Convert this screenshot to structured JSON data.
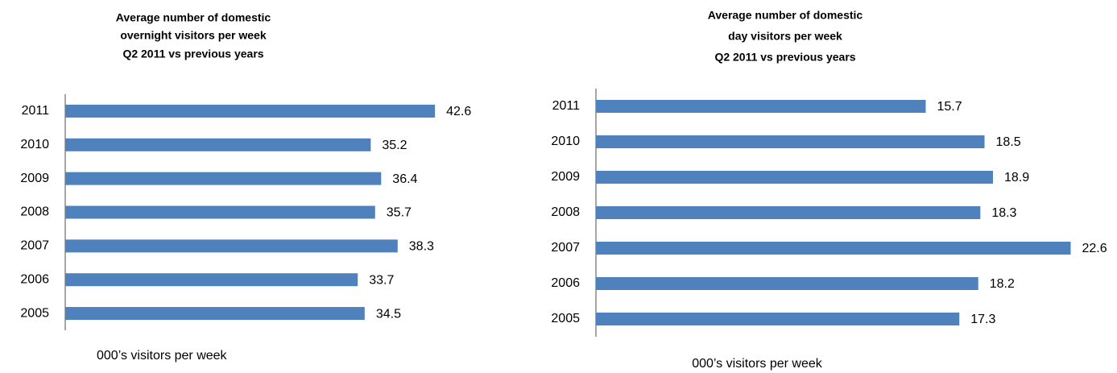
{
  "chart_data": [
    {
      "type": "hbar",
      "title": [
        "Average number of domestic",
        "overnight visitors per week",
        "Q2 2011 vs previous years"
      ],
      "x_label": "000’s visitors per week",
      "categories": [
        "2011",
        "2010",
        "2009",
        "2008",
        "2007",
        "2006",
        "2005"
      ],
      "values": [
        42.6,
        35.2,
        36.4,
        35.7,
        38.3,
        33.7,
        34.5
      ],
      "color": "#4f81bd",
      "xlim": [
        0,
        45
      ]
    },
    {
      "type": "hbar",
      "title": [
        "Average number of domestic",
        "day visitors per week",
        "Q2 2011 vs previous years"
      ],
      "x_label": "000’s visitors per week",
      "categories": [
        "2011",
        "2010",
        "2009",
        "2008",
        "2007",
        "2006",
        "2005"
      ],
      "values": [
        15.7,
        18.5,
        18.9,
        18.3,
        22.6,
        18.2,
        17.3
      ],
      "color": "#4f81bd",
      "xlim": [
        0,
        24
      ]
    }
  ]
}
